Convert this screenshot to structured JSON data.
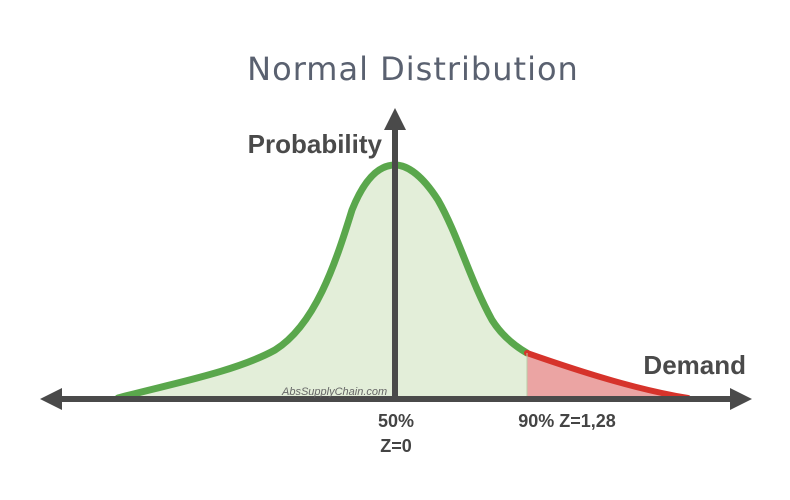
{
  "title": "Normal Distribution",
  "y_axis_label": "Probability",
  "x_axis_label": "Demand",
  "markers": [
    {
      "percent": "50%",
      "z": "Z=0"
    },
    {
      "percent": "90% Z=1,28"
    }
  ],
  "watermark": "AbsSupplyChain.com",
  "colors": {
    "curve": "#5aa74c",
    "fill": "#e3eed9",
    "tail_line": "#d6332b",
    "tail_fill": "#eba4a3",
    "axis": "#4a4a4a",
    "title": "#5a6170"
  },
  "chart_data": {
    "type": "area",
    "distribution": "normal",
    "mean_z": 0,
    "shaded_tail_from_z": 1.28,
    "shaded_tail_percentile": 90
  }
}
